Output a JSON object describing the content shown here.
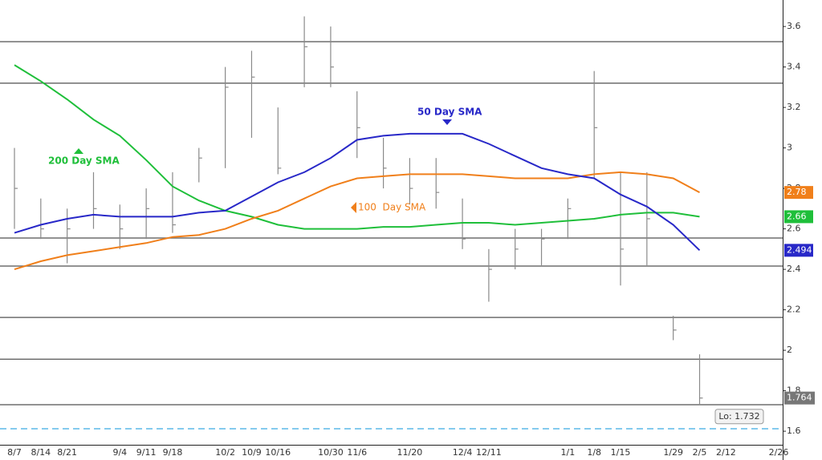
{
  "chart_data": {
    "type": "ohlc",
    "categories": [
      "8/7",
      "8/14",
      "8/21",
      null,
      "9/4",
      "9/11",
      "9/18",
      null,
      "10/2",
      "10/9",
      "10/16",
      null,
      "10/30",
      "11/6",
      null,
      "11/20",
      null,
      "12/4",
      "12/11",
      null,
      null,
      "1/1",
      "1/8",
      "1/15",
      null,
      "1/29",
      "2/5",
      "2/12",
      null,
      "2/26"
    ],
    "high": [
      3.0,
      2.75,
      2.7,
      2.88,
      2.72,
      2.8,
      2.88,
      3.0,
      3.4,
      3.48,
      3.2,
      3.65,
      3.6,
      3.28,
      3.05,
      2.95,
      2.95,
      2.75,
      2.5,
      2.6,
      2.6,
      2.75,
      3.38,
      2.88,
      2.88,
      2.17,
      1.98,
      null,
      null,
      null
    ],
    "low": [
      2.6,
      2.55,
      2.43,
      2.6,
      2.5,
      2.55,
      2.58,
      2.83,
      2.9,
      3.05,
      2.87,
      3.3,
      3.3,
      2.95,
      2.8,
      2.72,
      2.7,
      2.5,
      2.24,
      2.4,
      2.42,
      2.55,
      2.85,
      2.32,
      2.42,
      2.05,
      1.73,
      null,
      null,
      null
    ],
    "close": [
      2.8,
      2.6,
      2.6,
      2.7,
      2.6,
      2.7,
      2.62,
      2.95,
      3.3,
      3.35,
      2.9,
      3.5,
      3.4,
      3.1,
      2.9,
      2.8,
      2.78,
      2.55,
      2.4,
      2.5,
      2.55,
      2.7,
      3.1,
      2.5,
      2.65,
      2.1,
      1.764,
      null,
      null,
      null
    ],
    "last_price": 1.764,
    "low_annotation": {
      "value": 1.732,
      "label": "Lo: 1.732"
    },
    "bar_color": "#8a8a8a",
    "series": [
      {
        "name": "200 Day SMA",
        "color": "#1fbf3a",
        "end_label": 2.66,
        "values": [
          3.41,
          3.33,
          3.24,
          3.14,
          3.06,
          2.94,
          2.81,
          2.74,
          2.69,
          2.66,
          2.62,
          2.6,
          2.6,
          2.6,
          2.61,
          2.61,
          2.62,
          2.63,
          2.63,
          2.62,
          2.63,
          2.64,
          2.65,
          2.67,
          2.68,
          2.68,
          2.66,
          null,
          null,
          null
        ]
      },
      {
        "name": "100  Day SMA",
        "color": "#f07f1a",
        "end_label": 2.78,
        "values": [
          2.4,
          2.44,
          2.47,
          2.49,
          2.51,
          2.53,
          2.56,
          2.57,
          2.6,
          2.65,
          2.69,
          2.75,
          2.81,
          2.85,
          2.86,
          2.87,
          2.87,
          2.87,
          2.86,
          2.85,
          2.85,
          2.85,
          2.87,
          2.88,
          2.87,
          2.85,
          2.78,
          null,
          null,
          null
        ]
      },
      {
        "name": "50 Day SMA",
        "color": "#2828c8",
        "end_label": 2.494,
        "values": [
          2.58,
          2.62,
          2.65,
          2.67,
          2.66,
          2.66,
          2.66,
          2.68,
          2.69,
          2.76,
          2.83,
          2.88,
          2.95,
          3.04,
          3.06,
          3.07,
          3.07,
          3.07,
          3.02,
          2.96,
          2.9,
          2.87,
          2.85,
          2.77,
          2.71,
          2.62,
          2.494,
          null,
          null,
          null
        ]
      }
    ],
    "hlines": [
      3.525,
      3.32,
      2.555,
      2.416,
      2.162,
      1.956,
      1.731
    ],
    "hline_color": "#6e6e6e",
    "dashed_hline": 1.612,
    "dashed_color": "#5bb8e8",
    "ylim": [
      1.533,
      3.731
    ],
    "yticks": [
      1.6,
      1.8,
      2,
      2.2,
      2.4,
      2.6,
      2.8,
      3,
      3.2,
      3.4,
      3.6
    ]
  }
}
